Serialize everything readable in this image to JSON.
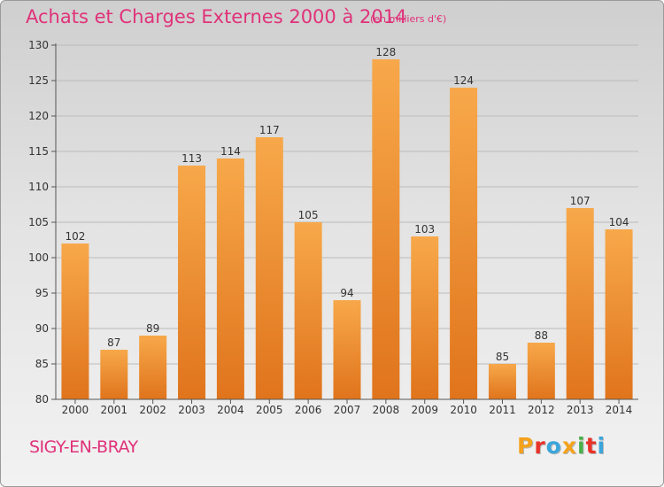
{
  "header": {
    "title": "Achats et Charges Externes 2000 à 2014",
    "unit_note": "(en milliers d'€)"
  },
  "footer": {
    "commune": "SIGY-EN-BRAY",
    "logo_text": "Proxiti",
    "logo_colors": [
      "#f4a21c",
      "#e8332a",
      "#3aa6dc",
      "#f4a21c",
      "#4ab04a",
      "#e8332a",
      "#3aa6dc"
    ]
  },
  "colors": {
    "bar_top": "#f7a84a",
    "bar_bottom": "#e0741c",
    "title": "#e0327a",
    "axis": "#555555",
    "grid": "#bbbbbb"
  },
  "chart_data": {
    "type": "bar",
    "title": "Achats et Charges Externes 2000 à 2014",
    "subtitle": "(en milliers d'€)",
    "xlabel": "",
    "ylabel": "",
    "categories": [
      "2000",
      "2001",
      "2002",
      "2003",
      "2004",
      "2005",
      "2006",
      "2007",
      "2008",
      "2009",
      "2010",
      "2011",
      "2012",
      "2013",
      "2014"
    ],
    "values": [
      102,
      87,
      89,
      113,
      114,
      117,
      105,
      94,
      128,
      103,
      124,
      85,
      88,
      107,
      104
    ],
    "ylim": [
      80,
      130
    ],
    "yticks": [
      80,
      85,
      90,
      95,
      100,
      105,
      110,
      115,
      120,
      125,
      130
    ],
    "grid": true,
    "data_labels": true
  }
}
